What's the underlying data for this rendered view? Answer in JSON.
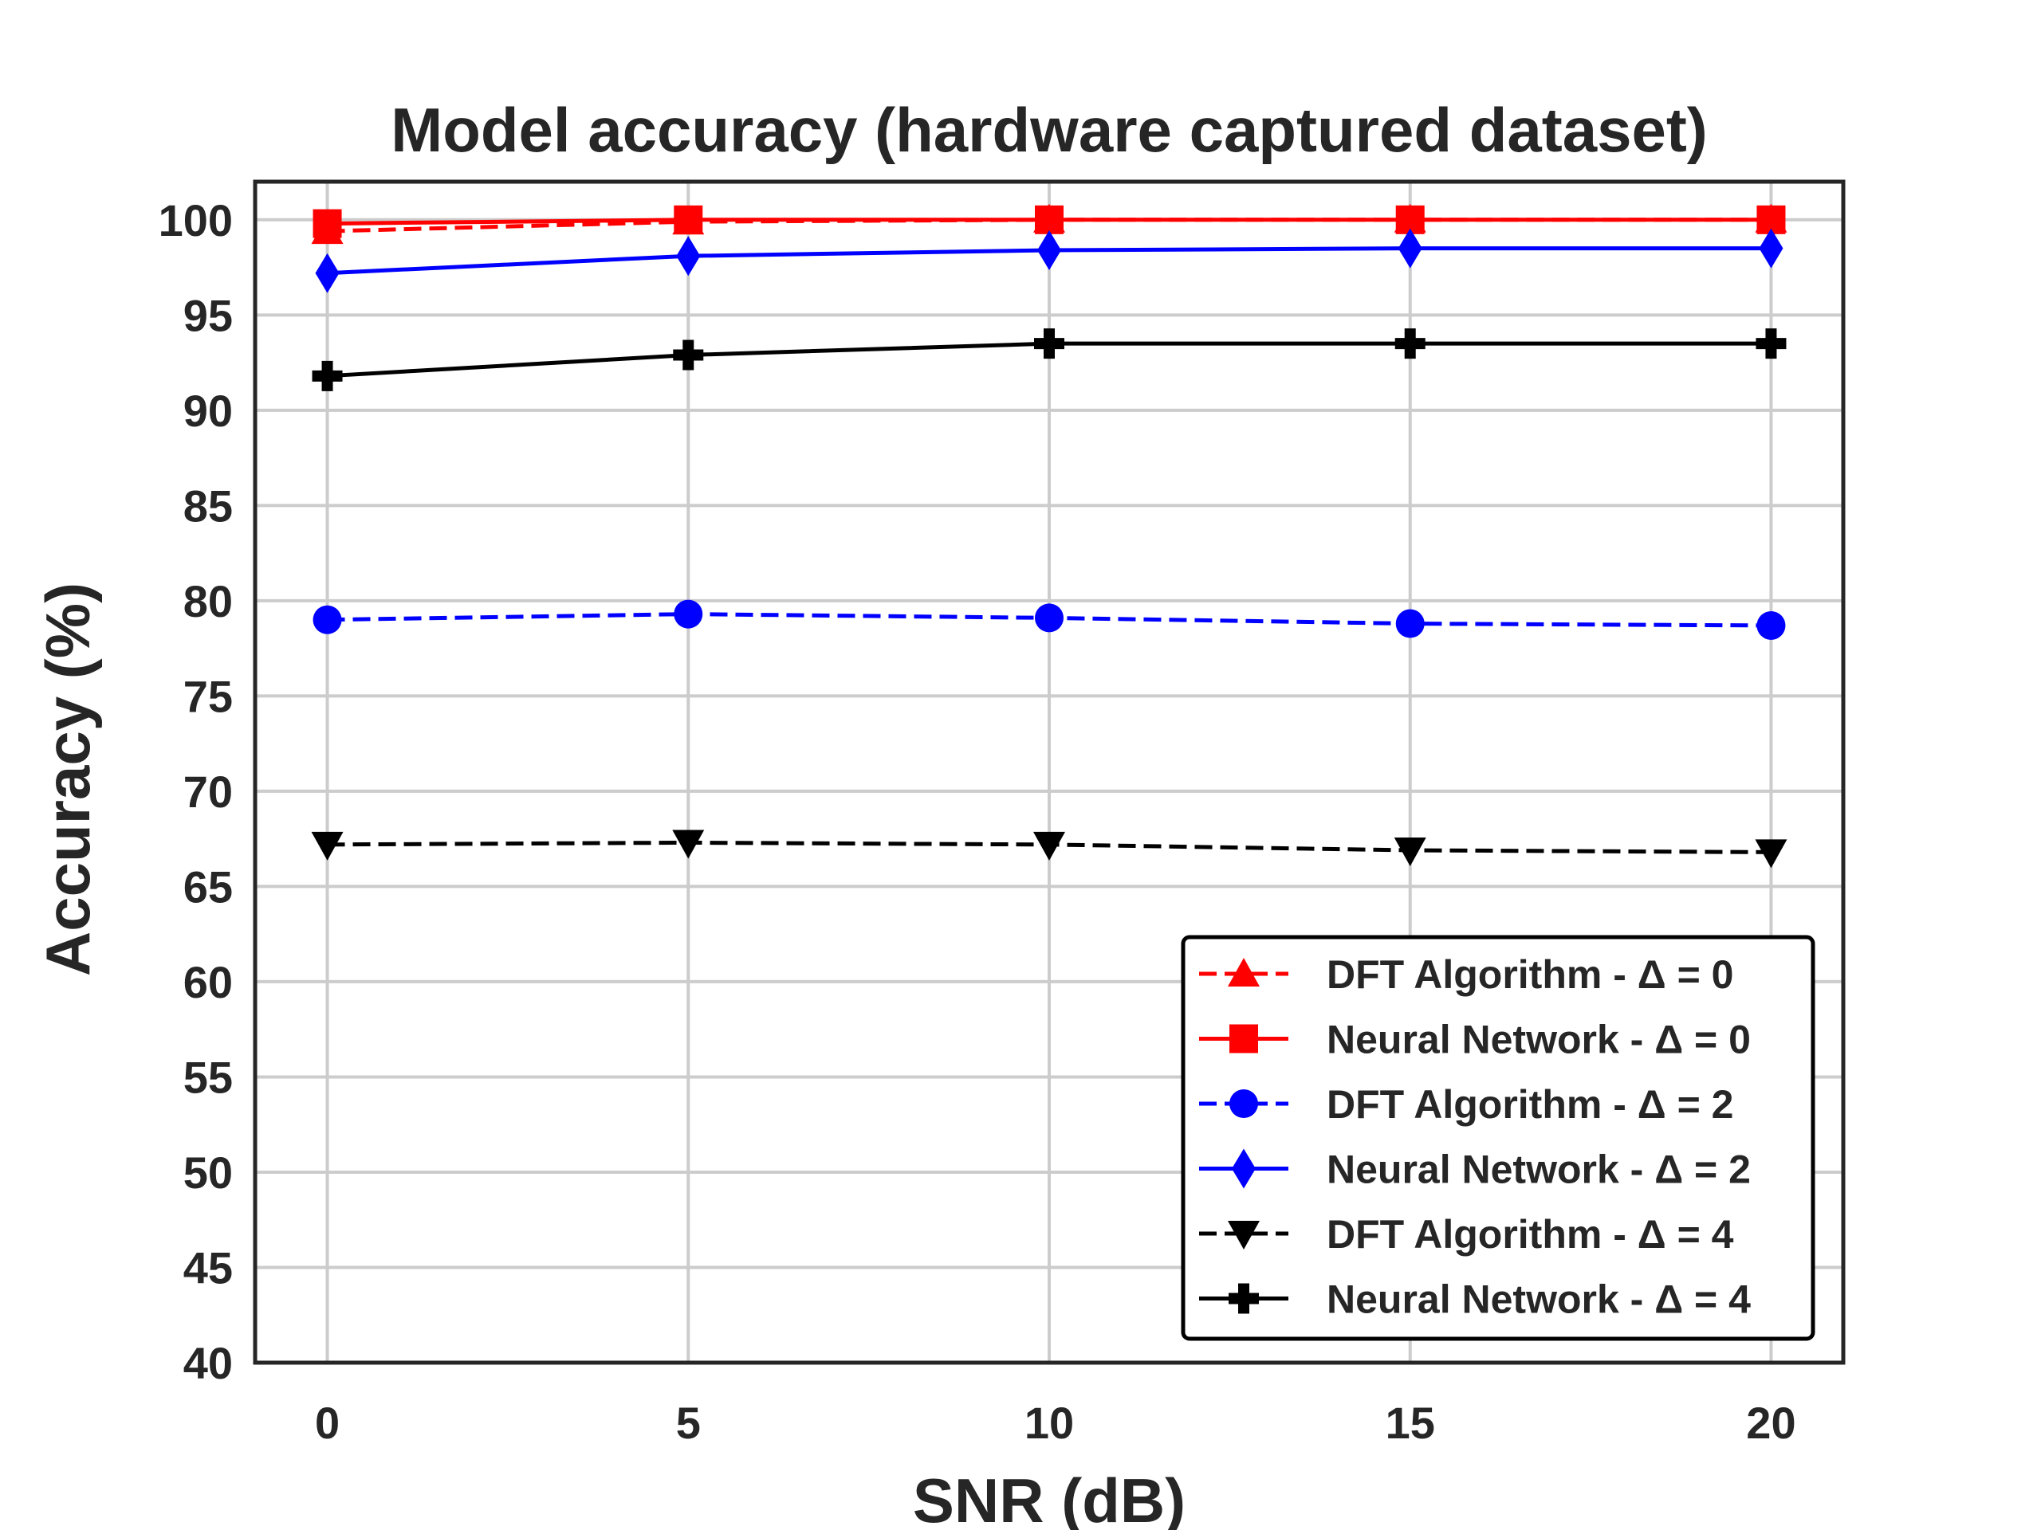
{
  "chart_data": {
    "type": "line",
    "title": "Model accuracy (hardware captured dataset)",
    "xlabel": "SNR (dB)",
    "ylabel": "Accuracy (%)",
    "x": [
      0,
      5,
      10,
      15,
      20
    ],
    "x_ticks": [
      "0",
      "5",
      "10",
      "15",
      "20"
    ],
    "y_ticks": [
      "40",
      "45",
      "50",
      "55",
      "60",
      "65",
      "70",
      "75",
      "80",
      "85",
      "90",
      "95",
      "100"
    ],
    "xlim": [
      -1,
      21
    ],
    "ylim": [
      40,
      102
    ],
    "grid": true,
    "legend_position": "lower-right",
    "series": [
      {
        "name": "DFT Algorithm - Δ = 0",
        "values": [
          99.4,
          99.9,
          100.0,
          100.0,
          100.0
        ],
        "color": "#ff0000",
        "linestyle": "dashed",
        "marker": "triangle-up"
      },
      {
        "name": "Neural Network - Δ = 0",
        "values": [
          99.8,
          100.0,
          100.0,
          100.0,
          100.0
        ],
        "color": "#ff0000",
        "linestyle": "solid",
        "marker": "square"
      },
      {
        "name": "DFT Algorithm - Δ = 2",
        "values": [
          79.0,
          79.3,
          79.1,
          78.8,
          78.7
        ],
        "color": "#0000ff",
        "linestyle": "dashed",
        "marker": "circle"
      },
      {
        "name": "Neural Network - Δ = 2",
        "values": [
          97.2,
          98.1,
          98.4,
          98.5,
          98.5
        ],
        "color": "#0000ff",
        "linestyle": "solid",
        "marker": "diamond"
      },
      {
        "name": "DFT Algorithm - Δ = 4",
        "values": [
          67.2,
          67.3,
          67.2,
          66.9,
          66.8
        ],
        "color": "#000000",
        "linestyle": "dashed",
        "marker": "triangle-down"
      },
      {
        "name": "Neural Network - Δ = 4",
        "values": [
          91.8,
          92.9,
          93.5,
          93.5,
          93.5
        ],
        "color": "#000000",
        "linestyle": "solid",
        "marker": "plus"
      }
    ]
  }
}
